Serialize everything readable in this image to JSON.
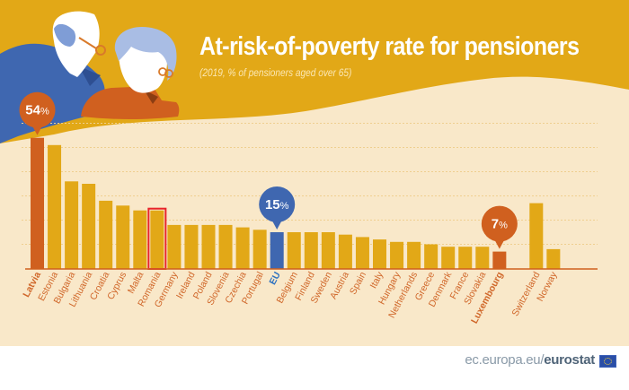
{
  "header": {
    "title": "At-risk-of-poverty rate for pensioners",
    "subtitle": "(2019, % of pensioners aged over 65)"
  },
  "footer": {
    "url_prefix": "ec.europa.eu/",
    "url_brand": "eurostat",
    "flag_icon": "eu-flag-icon"
  },
  "colors": {
    "header_bg": "#e2a817",
    "chart_bg": "#f9e8c9",
    "bar_default": "#e2a817",
    "bar_highlight": "#d0601f",
    "bar_eu": "#3f67b0",
    "label_text": "#d0672a",
    "eu_label_text": "#2e72c0",
    "selection_box": "#e8242a"
  },
  "chart_data": {
    "type": "bar",
    "title": "At-risk-of-poverty rate for pensioners",
    "subtitle": "(2019, % of pensioners aged over 65)",
    "xlabel": "",
    "ylabel": "% of pensioners aged over 65",
    "ylim": [
      0,
      60
    ],
    "grid": true,
    "gridline_step": 10,
    "categories": [
      "Latvia",
      "Estonia",
      "Bulgaria",
      "Lithuania",
      "Croatia",
      "Cyprus",
      "Malta",
      "Romania",
      "Germany",
      "Ireland",
      "Poland",
      "Slovenia",
      "Czechia",
      "Portugal",
      "EU",
      "Belgium",
      "Finland",
      "Sweden",
      "Austria",
      "Spain",
      "Italy",
      "Hungary",
      "Netherlands",
      "Greece",
      "Denmark",
      "France",
      "Slovakia",
      "Luxembourg",
      "Switzerland",
      "Norway"
    ],
    "values": [
      54,
      51,
      36,
      35,
      28,
      26,
      24,
      24,
      18,
      18,
      18,
      18,
      17,
      16,
      15,
      15,
      15,
      15,
      14,
      13,
      12,
      11,
      11,
      10,
      9,
      9,
      9,
      7,
      27,
      8
    ],
    "highlight": {
      "max": "Latvia",
      "min": "Luxembourg",
      "eu": "EU",
      "selected": "Romania"
    },
    "callouts": [
      {
        "category": "Latvia",
        "label": "54",
        "unit": "%"
      },
      {
        "category": "EU",
        "label": "15",
        "unit": "%"
      },
      {
        "category": "Luxembourg",
        "label": "7",
        "unit": "%"
      }
    ],
    "gap_before": "Switzerland"
  }
}
